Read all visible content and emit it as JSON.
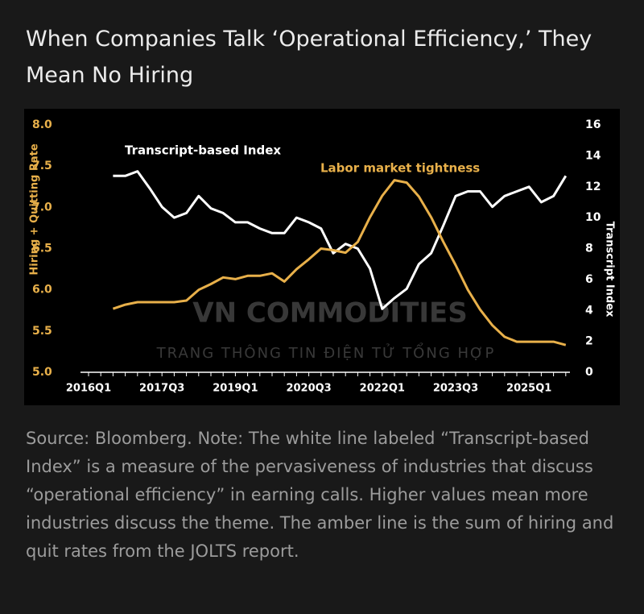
{
  "title": "When Companies Talk ‘Operational Efficiency,’ They Mean No Hiring",
  "source": "Source: Bloomberg. Note: The white line labeled “Transcript-based Index” is a measure of the pervasiveness of industries that discuss “operational efficiency” in earning calls. Higher values mean more industries discuss the theme. The amber line is the sum of hiring and quit rates from the JOLTS report.",
  "chart_data": {
    "type": "line",
    "watermark": [
      "VN COMMODITIES",
      "TRANG THÔNG TIN ĐIỆN TỬ TỔNG HỢP"
    ],
    "ylabel": "Hiring + Quitting Rate",
    "y2label": "Transcript Index",
    "categories": [
      "2016Q1",
      null,
      null,
      null,
      null,
      null,
      "2017Q3",
      null,
      null,
      null,
      null,
      null,
      "2019Q1",
      null,
      null,
      null,
      null,
      null,
      "2020Q3",
      null,
      null,
      null,
      null,
      null,
      "2022Q1",
      null,
      null,
      null,
      null,
      null,
      "2023Q3",
      null,
      null,
      null,
      null,
      null,
      "2025Q1",
      null,
      null,
      null
    ],
    "ylim": [
      5,
      8
    ],
    "yticks": [
      {
        "value": 5,
        "label": "5.0"
      },
      {
        "value": 5.5,
        "label": "5.5"
      },
      {
        "value": 6,
        "label": "6.0"
      },
      {
        "value": 6.5,
        "label": "6.5"
      },
      {
        "value": 7,
        "label": "7.0"
      },
      {
        "value": 7.5,
        "label": "7.5"
      },
      {
        "value": 8,
        "label": "8.0"
      }
    ],
    "y2lim": [
      0,
      16
    ],
    "y2ticks": [
      0,
      2,
      4,
      6,
      8,
      10,
      12,
      14,
      16
    ],
    "series": [
      {
        "name": "Transcript-based Index",
        "color": "#ffffff",
        "axis": "y2",
        "values": [
          null,
          null,
          12.7,
          12.7,
          13.0,
          11.9,
          10.7,
          10.0,
          10.3,
          11.4,
          10.6,
          10.3,
          9.7,
          9.7,
          9.3,
          9.0,
          9.0,
          10.0,
          9.7,
          9.3,
          7.7,
          8.3,
          8.0,
          6.7,
          4.1,
          4.8,
          5.4,
          7.0,
          7.7,
          9.5,
          11.4,
          11.7,
          11.7,
          10.7,
          11.4,
          11.7,
          12.0,
          11.0,
          11.4,
          12.7
        ]
      },
      {
        "name": "Labor market tightness",
        "color": "#e8b04a",
        "values": [
          null,
          null,
          5.77,
          5.82,
          5.85,
          5.85,
          5.85,
          5.85,
          5.87,
          6.0,
          6.07,
          6.15,
          6.13,
          6.17,
          6.17,
          6.2,
          6.1,
          6.25,
          6.37,
          6.5,
          6.48,
          6.45,
          6.58,
          6.88,
          7.14,
          7.33,
          7.3,
          7.13,
          6.88,
          6.58,
          6.3,
          6.0,
          5.76,
          5.57,
          5.43,
          5.37,
          5.37,
          5.37,
          5.37,
          5.33
        ]
      }
    ]
  }
}
